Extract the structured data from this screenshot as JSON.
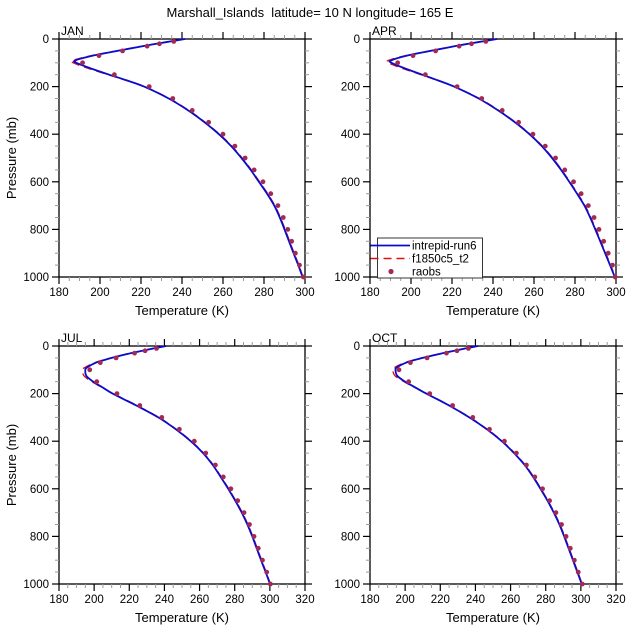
{
  "title": "Marshall_Islands  latitude= 10 N longitude= 165 E",
  "colors": {
    "run6_line": "#0B0BCC",
    "f1850_line": "#E01010",
    "raobs_dot": "#A32A54",
    "axis": "#000000",
    "minor_tick": "#9a9a9a",
    "background": "#ffffff"
  },
  "legend": {
    "entries": [
      {
        "label": "intrepid-run6",
        "style": "solid-line",
        "color": "#0B0BCC"
      },
      {
        "label": "f1850c5_t2",
        "style": "dashed-line",
        "color": "#E01010"
      },
      {
        "label": "raobs",
        "style": "dot",
        "color": "#A32A54"
      }
    ]
  },
  "axes": {
    "xlabel": "Temperature (K)",
    "ylabel": "Pressure (mb)",
    "yticks": [
      0,
      200,
      400,
      600,
      800,
      1000
    ],
    "y_minor_step": 50,
    "x_minor_step": 5,
    "y_inverted": true
  },
  "chart_data": [
    {
      "type": "line",
      "title": "JAN",
      "xlabel": "Temperature (K)",
      "ylabel": "Pressure (mb)",
      "xlim": [
        180,
        300
      ],
      "ylim": [
        1000,
        0
      ],
      "xticks": [
        180,
        200,
        220,
        240,
        260,
        280,
        300
      ],
      "series": [
        {
          "name": "intrepid-run6",
          "style": "solid",
          "color": "#0B0BCC",
          "pressure": [
            0,
            10,
            20,
            30,
            50,
            70,
            90,
            100,
            125,
            150,
            175,
            200,
            250,
            300,
            350,
            400,
            450,
            500,
            550,
            600,
            650,
            700,
            750,
            800,
            850,
            900,
            950,
            1000
          ],
          "temperature": [
            241.5,
            234.5,
            227.5,
            221.0,
            208.5,
            196.5,
            188.0,
            188.5,
            196.0,
            204.5,
            213.5,
            221.5,
            233.5,
            243.0,
            251.0,
            258.0,
            264.0,
            269.0,
            273.5,
            277.5,
            281.5,
            285.0,
            287.7,
            290.0,
            292.2,
            294.4,
            296.7,
            298.8
          ]
        },
        {
          "name": "f1850c5_t2",
          "style": "dashed",
          "color": "#E01010",
          "pressure": [
            0,
            10,
            20,
            30,
            50,
            70,
            90,
            100,
            125,
            150,
            175,
            200,
            250,
            300,
            350,
            400,
            450,
            500,
            550,
            600,
            650,
            700,
            750,
            800,
            850,
            900,
            950,
            1000
          ],
          "temperature": [
            241.2,
            234.2,
            227.2,
            220.6,
            208.0,
            195.8,
            186.8,
            187.0,
            194.8,
            204.0,
            213.2,
            221.8,
            233.8,
            243.3,
            251.3,
            258.3,
            264.3,
            269.3,
            273.8,
            277.8,
            281.8,
            285.3,
            288.0,
            290.3,
            292.5,
            294.7,
            297.0,
            299.0
          ]
        },
        {
          "name": "raobs",
          "style": "dots",
          "color": "#A32A54",
          "pressure": [
            10,
            20,
            30,
            50,
            70,
            100,
            150,
            200,
            250,
            300,
            350,
            400,
            450,
            500,
            550,
            600,
            650,
            700,
            750,
            800,
            850,
            900,
            950,
            1000
          ],
          "temperature": [
            236.0,
            229.0,
            223.0,
            211.0,
            199.5,
            191.5,
            207.0,
            224.0,
            235.5,
            245.0,
            253.0,
            260.0,
            265.8,
            270.8,
            275.2,
            279.5,
            283.3,
            286.8,
            289.4,
            291.6,
            293.5,
            295.3,
            297.3,
            299.2
          ]
        }
      ]
    },
    {
      "type": "line",
      "title": "APR",
      "xlabel": "Temperature (K)",
      "ylabel": "Pressure (mb)",
      "xlim": [
        180,
        300
      ],
      "ylim": [
        1000,
        0
      ],
      "xticks": [
        180,
        200,
        220,
        240,
        260,
        280,
        300
      ],
      "has_legend": true,
      "series": [
        {
          "name": "intrepid-run6",
          "style": "solid",
          "color": "#0B0BCC",
          "pressure": [
            0,
            10,
            20,
            30,
            50,
            70,
            90,
            100,
            125,
            150,
            175,
            200,
            250,
            300,
            350,
            400,
            450,
            500,
            550,
            600,
            650,
            700,
            750,
            800,
            850,
            900,
            950,
            1000
          ],
          "temperature": [
            242.0,
            235.0,
            228.0,
            221.5,
            209.5,
            198.0,
            190.3,
            190.5,
            197.5,
            205.5,
            213.5,
            221.0,
            233.0,
            242.5,
            250.7,
            257.8,
            263.8,
            268.8,
            273.2,
            277.2,
            281.0,
            284.6,
            287.4,
            289.9,
            292.3,
            294.7,
            297.1,
            299.4
          ]
        },
        {
          "name": "f1850c5_t2",
          "style": "dashed",
          "color": "#E01010",
          "pressure": [
            0,
            10,
            20,
            30,
            50,
            70,
            90,
            100,
            125,
            150,
            175,
            200,
            250,
            300,
            350,
            400,
            450,
            500,
            550,
            600,
            650,
            700,
            750,
            800,
            850,
            900,
            950,
            1000
          ],
          "temperature": [
            241.7,
            234.7,
            227.7,
            221.1,
            209.0,
            197.3,
            189.0,
            189.0,
            196.3,
            205.0,
            213.2,
            221.3,
            233.3,
            242.8,
            251.0,
            258.1,
            264.1,
            269.1,
            273.5,
            277.5,
            281.3,
            284.9,
            287.7,
            290.2,
            292.6,
            295.0,
            297.4,
            299.6
          ]
        },
        {
          "name": "raobs",
          "style": "dots",
          "color": "#A32A54",
          "pressure": [
            10,
            20,
            30,
            50,
            70,
            100,
            150,
            200,
            250,
            300,
            350,
            400,
            450,
            500,
            550,
            600,
            650,
            700,
            750,
            800,
            850,
            900,
            950,
            1000
          ],
          "temperature": [
            236.5,
            229.5,
            223.5,
            212.0,
            201.0,
            193.5,
            207.0,
            222.5,
            234.5,
            244.5,
            252.5,
            259.5,
            265.5,
            270.5,
            275.0,
            279.3,
            283.0,
            286.5,
            289.3,
            291.7,
            294.0,
            296.2,
            298.3,
            299.6
          ]
        }
      ]
    },
    {
      "type": "line",
      "title": "JUL",
      "xlabel": "Temperature (K)",
      "ylabel": "Pressure (mb)",
      "xlim": [
        180,
        320
      ],
      "ylim": [
        1000,
        0
      ],
      "xticks": [
        180,
        200,
        220,
        240,
        260,
        280,
        300,
        320
      ],
      "series": [
        {
          "name": "intrepid-run6",
          "style": "solid",
          "color": "#0B0BCC",
          "pressure": [
            0,
            10,
            20,
            30,
            50,
            70,
            90,
            100,
            125,
            150,
            175,
            200,
            250,
            300,
            350,
            400,
            450,
            500,
            550,
            600,
            650,
            700,
            750,
            800,
            850,
            900,
            950,
            1000
          ],
          "temperature": [
            241.0,
            234.0,
            227.5,
            221.0,
            210.0,
            201.0,
            196.0,
            195.0,
            195.5,
            199.5,
            205.0,
            210.5,
            224.0,
            236.5,
            246.5,
            255.0,
            262.0,
            267.5,
            272.0,
            276.3,
            280.3,
            284.0,
            287.2,
            290.0,
            292.5,
            295.0,
            297.6,
            300.1
          ]
        },
        {
          "name": "f1850c5_t2",
          "style": "dashed",
          "color": "#E01010",
          "pressure": [
            0,
            10,
            20,
            30,
            50,
            70,
            90,
            100,
            125,
            150,
            175,
            200,
            250,
            300,
            350,
            400,
            450,
            500,
            550,
            600,
            650,
            700,
            750,
            800,
            850,
            900,
            950,
            1000
          ],
          "temperature": [
            240.7,
            233.7,
            227.2,
            220.6,
            209.5,
            200.4,
            194.8,
            193.5,
            194.2,
            198.8,
            204.6,
            210.8,
            224.3,
            236.8,
            246.8,
            255.3,
            262.3,
            267.8,
            272.3,
            276.6,
            280.6,
            284.3,
            287.5,
            290.3,
            292.8,
            295.3,
            297.9,
            300.3
          ]
        },
        {
          "name": "raobs",
          "style": "dots",
          "color": "#A32A54",
          "pressure": [
            10,
            20,
            30,
            50,
            70,
            100,
            150,
            200,
            250,
            300,
            350,
            400,
            450,
            500,
            550,
            600,
            650,
            700,
            750,
            800,
            850,
            900,
            950,
            1000
          ],
          "temperature": [
            235.5,
            229.0,
            223.0,
            212.5,
            203.5,
            197.5,
            201.5,
            213.0,
            226.0,
            238.5,
            248.5,
            257.0,
            263.5,
            269.0,
            273.5,
            277.8,
            281.7,
            285.3,
            288.4,
            291.0,
            293.4,
            295.8,
            298.2,
            300.3
          ]
        }
      ]
    },
    {
      "type": "line",
      "title": "OCT",
      "xlabel": "Temperature (K)",
      "ylabel": "Pressure (mb)",
      "xlim": [
        180,
        320
      ],
      "ylim": [
        1000,
        0
      ],
      "xticks": [
        180,
        200,
        220,
        240,
        260,
        280,
        300,
        320
      ],
      "series": [
        {
          "name": "intrepid-run6",
          "style": "solid",
          "color": "#0B0BCC",
          "pressure": [
            0,
            10,
            20,
            30,
            50,
            70,
            90,
            100,
            125,
            150,
            175,
            200,
            250,
            300,
            350,
            400,
            450,
            500,
            550,
            600,
            650,
            700,
            750,
            800,
            850,
            900,
            950,
            1000
          ],
          "temperature": [
            241.5,
            234.5,
            228.0,
            221.5,
            210.0,
            200.5,
            195.3,
            194.5,
            195.5,
            200.0,
            206.0,
            212.0,
            225.0,
            236.5,
            246.5,
            255.0,
            262.0,
            268.0,
            272.8,
            277.0,
            281.0,
            284.6,
            287.8,
            290.5,
            293.0,
            295.5,
            298.0,
            300.5
          ]
        },
        {
          "name": "f1850c5_t2",
          "style": "dashed",
          "color": "#E01010",
          "pressure": [
            0,
            10,
            20,
            30,
            50,
            70,
            90,
            100,
            125,
            150,
            175,
            200,
            250,
            300,
            350,
            400,
            450,
            500,
            550,
            600,
            650,
            700,
            750,
            800,
            850,
            900,
            950,
            1000
          ],
          "temperature": [
            241.2,
            234.2,
            227.7,
            221.1,
            209.5,
            199.8,
            194.0,
            193.0,
            194.2,
            199.4,
            205.6,
            212.3,
            225.3,
            236.8,
            246.8,
            255.3,
            262.3,
            268.3,
            273.1,
            277.3,
            281.3,
            284.9,
            288.1,
            290.8,
            293.3,
            295.8,
            298.3,
            300.7
          ]
        },
        {
          "name": "raobs",
          "style": "dots",
          "color": "#A32A54",
          "pressure": [
            10,
            20,
            30,
            50,
            70,
            100,
            150,
            200,
            250,
            300,
            350,
            400,
            450,
            500,
            550,
            600,
            650,
            700,
            750,
            800,
            850,
            900,
            950,
            1000
          ],
          "temperature": [
            236.0,
            229.5,
            223.5,
            212.5,
            203.0,
            196.5,
            202.0,
            214.0,
            227.0,
            238.5,
            248.0,
            256.5,
            263.3,
            269.0,
            273.8,
            278.2,
            282.2,
            285.8,
            289.0,
            291.6,
            294.0,
            296.3,
            298.5,
            300.8
          ]
        }
      ]
    }
  ]
}
